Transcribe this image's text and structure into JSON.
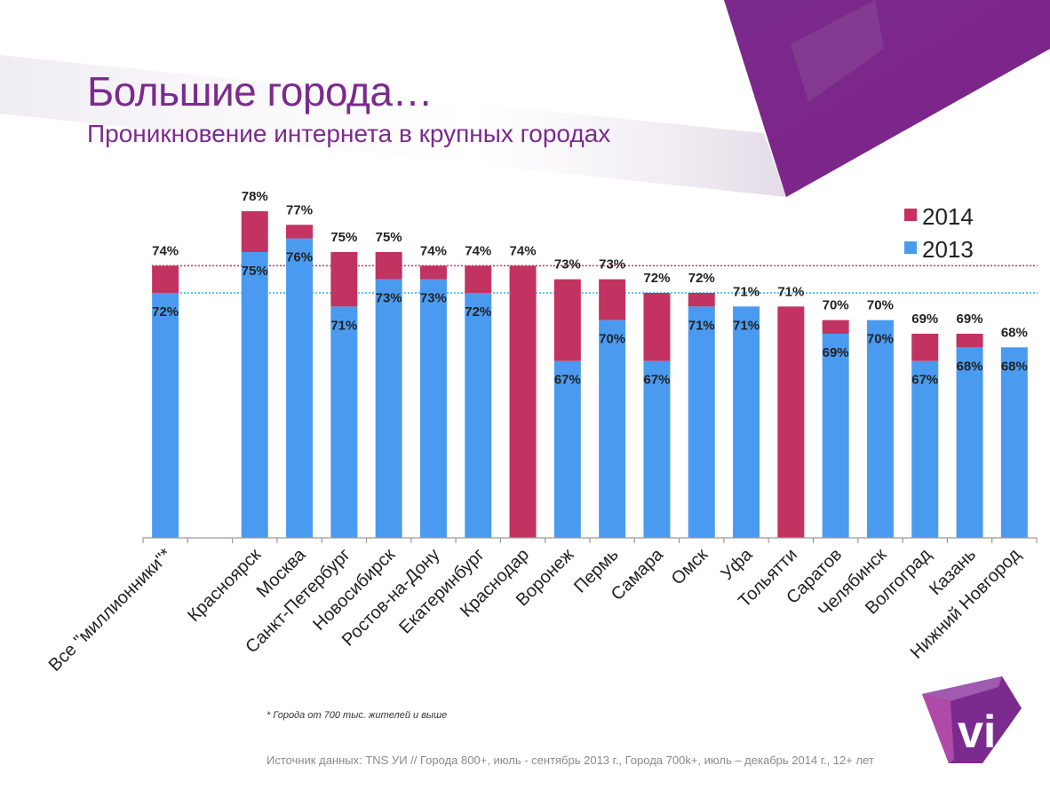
{
  "slide": {
    "title": "Большие города…",
    "subtitle": "Проникновение интернета в крупных городах",
    "footnote": "* Города от 700 тыс. жителей и выше",
    "source": "Источник данных:  TNS УИ // Города 800+, июль - сентябрь 2013 г., Города 700k+, июль – декабрь  2014 г., 12+ лет",
    "logo_text": "vi",
    "colors": {
      "brand_purple": "#7b2a8e",
      "series_2014": "#c23361",
      "series_2013": "#4a9bf0"
    }
  },
  "chart_data": {
    "type": "bar",
    "stacked": true,
    "title": "Проникновение интернета в крупных городах",
    "xlabel": "",
    "ylabel": "",
    "ylim": [
      54,
      80
    ],
    "grid": false,
    "legend": {
      "position": "top-right",
      "entries": [
        "2014",
        "2013"
      ]
    },
    "reference_lines": [
      {
        "label": "Все \"миллионники\"* 2014",
        "value": 74,
        "color": "#c23361",
        "style": "dotted"
      },
      {
        "label": "Все \"миллионники\"* 2013",
        "value": 72,
        "color": "#2bb3e0",
        "style": "dotted"
      }
    ],
    "categories": [
      "Все \"миллионники\"*",
      "",
      "Красноярск",
      "Москва",
      "Санкт-Петербург",
      "Новосибирск",
      "Ростов-на-Дону",
      "Екатеринбург",
      "Краснодар",
      "Воронеж",
      "Пермь",
      "Самара",
      "Омск",
      "Уфа",
      "Тольятти",
      "Саратов",
      "Челябинск",
      "Волгоград",
      "Казань",
      "Нижний Новгород"
    ],
    "series": [
      {
        "name": "2013",
        "color": "#4a9bf0",
        "values": [
          72,
          null,
          75,
          76,
          71,
          73,
          73,
          72,
          null,
          67,
          70,
          67,
          71,
          71,
          null,
          69,
          70,
          67,
          68,
          68
        ],
        "labels": [
          "72%",
          "",
          "75%",
          "76%",
          "71%",
          "73%",
          "73%",
          "72%",
          "",
          "67%",
          "70%",
          "67%",
          "71%",
          "71%",
          "",
          "69%",
          "70%",
          "67%",
          "68%",
          "68%"
        ]
      },
      {
        "name": "2014",
        "color": "#c23361",
        "values": [
          74,
          null,
          78,
          77,
          75,
          75,
          74,
          74,
          74,
          73,
          73,
          72,
          72,
          71,
          71,
          70,
          70,
          69,
          69,
          68
        ],
        "labels": [
          "74%",
          "",
          "78%",
          "77%",
          "75%",
          "75%",
          "74%",
          "74%",
          "74%",
          "73%",
          "73%",
          "72%",
          "72%",
          "71%",
          "71%",
          "70%",
          "70%",
          "69%",
          "69%",
          "68%"
        ]
      }
    ]
  }
}
